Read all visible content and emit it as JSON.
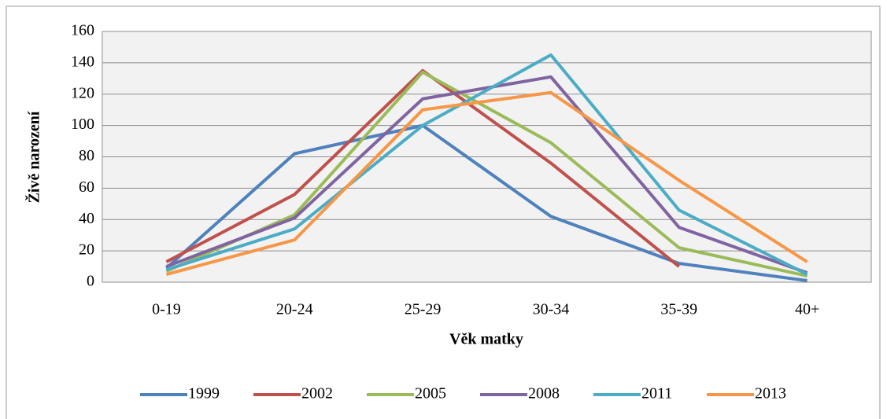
{
  "chart_data": {
    "type": "line",
    "categories": [
      "0-19",
      "20-24",
      "25-29",
      "30-34",
      "35-39",
      "40+"
    ],
    "series": [
      {
        "name": "1999",
        "color": "#4f81bd",
        "values": [
          9,
          82,
          100,
          42,
          12,
          1
        ]
      },
      {
        "name": "2002",
        "color": "#c0504d",
        "values": [
          13,
          56,
          135,
          76,
          10,
          null
        ]
      },
      {
        "name": "2005",
        "color": "#9bbb59",
        "values": [
          7,
          43,
          134,
          89,
          22,
          4
        ]
      },
      {
        "name": "2008",
        "color": "#8064a2",
        "values": [
          10,
          41,
          117,
          131,
          35,
          6
        ]
      },
      {
        "name": "2011",
        "color": "#4bacc6",
        "values": [
          8,
          34,
          100,
          145,
          46,
          5
        ]
      },
      {
        "name": "2013",
        "color": "#f79646",
        "values": [
          5,
          27,
          110,
          121,
          65,
          13
        ]
      }
    ],
    "xlabel": "Věk matky",
    "ylabel": "Živě narození",
    "ylim": [
      0,
      160
    ],
    "yticks": [
      0,
      20,
      40,
      60,
      80,
      100,
      120,
      140,
      160
    ],
    "grid": true,
    "legend": "bottom"
  }
}
